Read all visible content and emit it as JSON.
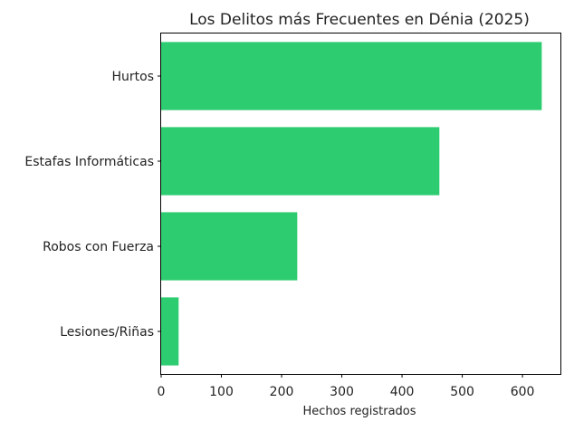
{
  "chart_data": {
    "type": "bar",
    "orientation": "horizontal",
    "title": "Los Delitos más Frecuentes en Dénia (2025)",
    "xlabel": "Hechos registrados",
    "ylabel": "",
    "categories": [
      "Hurtos",
      "Estafas Informáticas",
      "Robos con Fuerza",
      "Lesiones/Riñas"
    ],
    "values": [
      632,
      462,
      226,
      29
    ],
    "xlim": [
      0,
      663
    ],
    "xticks": [
      0,
      100,
      200,
      300,
      400,
      500,
      600
    ],
    "bar_color": "#2ecc71",
    "grid": false
  }
}
